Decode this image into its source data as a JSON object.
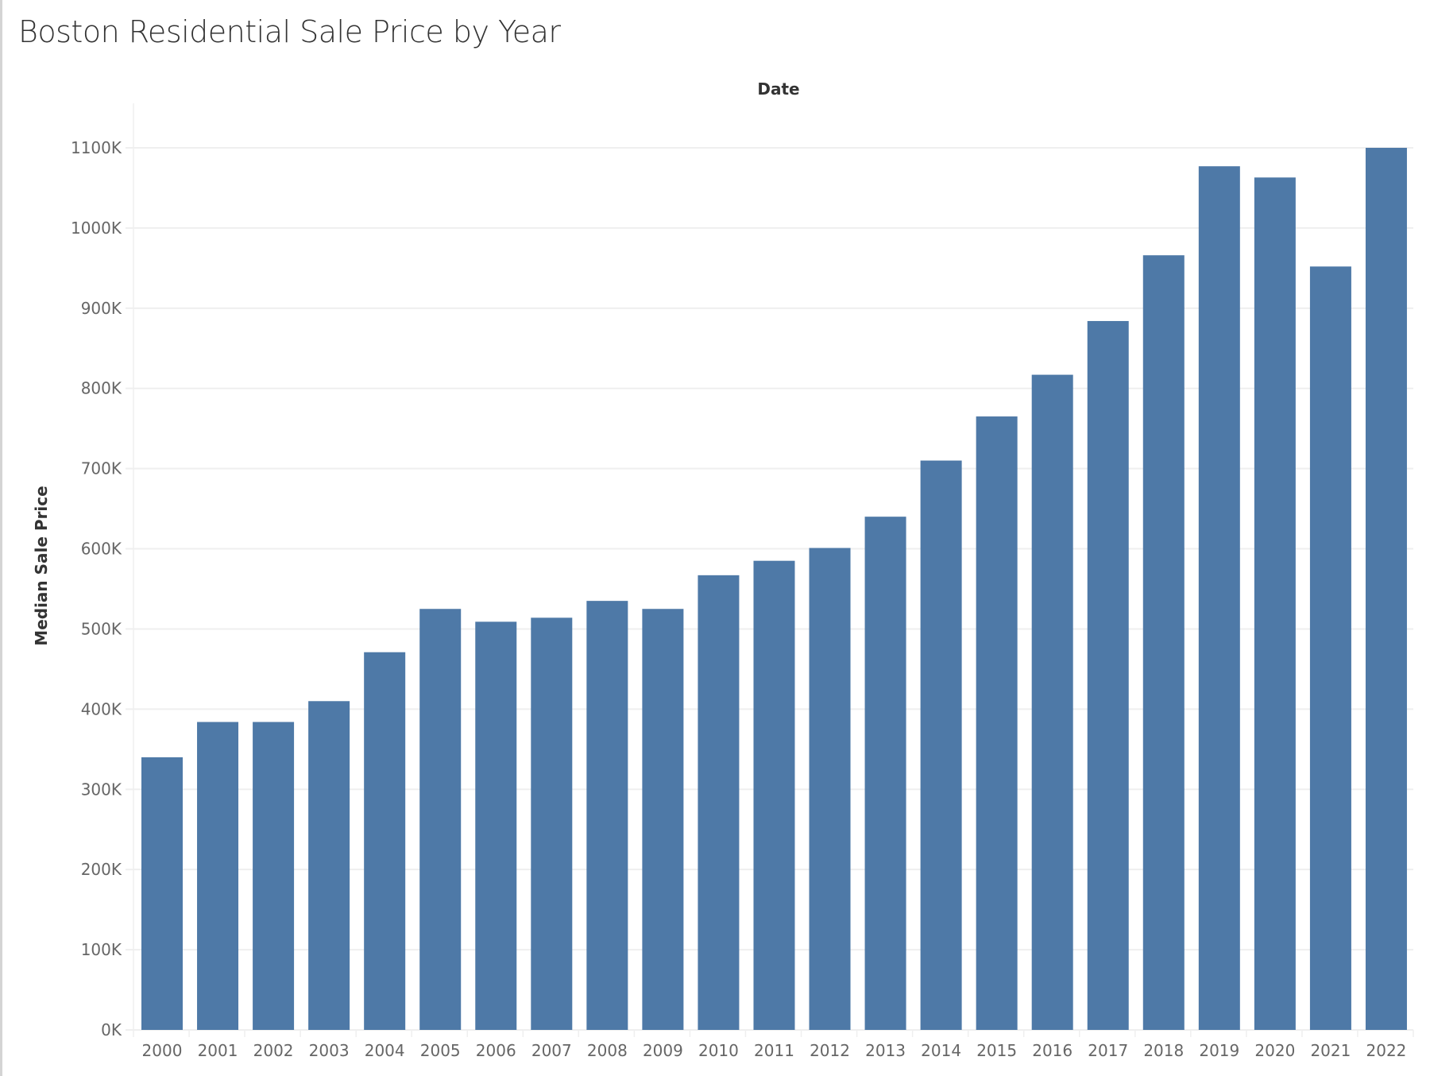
{
  "title": "Boston Residential Sale Price by Year",
  "chart_data": {
    "type": "bar",
    "title": "Boston Residential Sale Price by Year",
    "xlabel": "Date",
    "ylabel": "Median Sale Price",
    "categories": [
      "2000",
      "2001",
      "2002",
      "2003",
      "2004",
      "2005",
      "2006",
      "2007",
      "2008",
      "2009",
      "2010",
      "2011",
      "2012",
      "2013",
      "2014",
      "2015",
      "2016",
      "2017",
      "2018",
      "2019",
      "2020",
      "2021",
      "2022"
    ],
    "values": [
      340000,
      384000,
      384000,
      410000,
      471000,
      525000,
      509000,
      514000,
      535000,
      525000,
      567000,
      585000,
      601000,
      640000,
      710000,
      765000,
      817000,
      884000,
      966000,
      1077000,
      1063000,
      952000,
      1100000
    ],
    "ylim": [
      0,
      1100000
    ],
    "yticks": [
      0,
      100000,
      200000,
      300000,
      400000,
      500000,
      600000,
      700000,
      800000,
      900000,
      1000000,
      1100000
    ],
    "ytick_labels": [
      "0K",
      "100K",
      "200K",
      "300K",
      "400K",
      "500K",
      "600K",
      "700K",
      "800K",
      "900K",
      "1000K",
      "1100K"
    ],
    "grid": true,
    "legend": "none",
    "colors": {
      "bar": "#4e79a7",
      "grid": "#efefef",
      "text": "#666666",
      "title": "#333333"
    }
  }
}
